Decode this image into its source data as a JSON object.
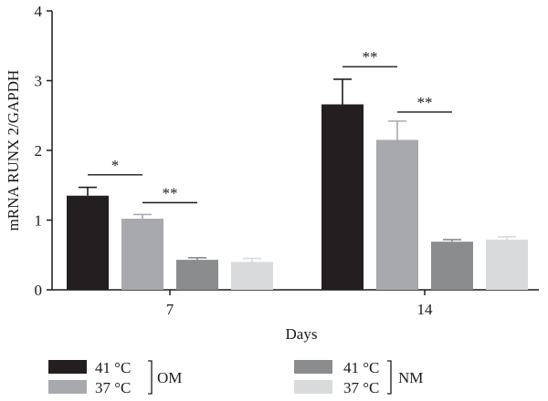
{
  "chart_data": {
    "type": "bar",
    "title": "",
    "xlabel": "Days",
    "ylabel": "mRNA RUNX 2/GAPDH",
    "ylim": [
      0,
      4
    ],
    "yticks": [
      "0",
      "1",
      "2",
      "3",
      "4"
    ],
    "categories": [
      "7",
      "14"
    ],
    "series": [
      {
        "name": "41 °C",
        "color": "#231f20",
        "values": [
          1.35,
          2.66
        ],
        "errors": [
          0.12,
          0.36
        ]
      },
      {
        "name": "37 °C",
        "color": "#a7a9ac",
        "values": [
          1.02,
          2.15
        ],
        "errors": [
          0.06,
          0.27
        ]
      },
      {
        "name": "41 °C",
        "color": "#8a8c8e",
        "values": [
          0.43,
          0.69
        ],
        "errors": [
          0.03,
          0.03
        ]
      },
      {
        "name": "37 °C",
        "color": "#d9dadb",
        "values": [
          0.4,
          0.72
        ],
        "errors": [
          0.05,
          0.04
        ]
      }
    ],
    "legend_groups": [
      {
        "label": "OM",
        "series": [
          0,
          1
        ]
      },
      {
        "label": "NM",
        "series": [
          2,
          3
        ]
      }
    ],
    "significance": [
      {
        "category": 0,
        "from": 0,
        "to": 1,
        "y": 1.65,
        "label": "*"
      },
      {
        "category": 0,
        "from": 1,
        "to": 2,
        "y": 1.25,
        "label": "**"
      },
      {
        "category": 1,
        "from": 0,
        "to": 1,
        "y": 3.2,
        "label": "**"
      },
      {
        "category": 1,
        "from": 1,
        "to": 2,
        "y": 2.55,
        "label": "**"
      }
    ],
    "grid": false,
    "legend_position": "bottom"
  }
}
